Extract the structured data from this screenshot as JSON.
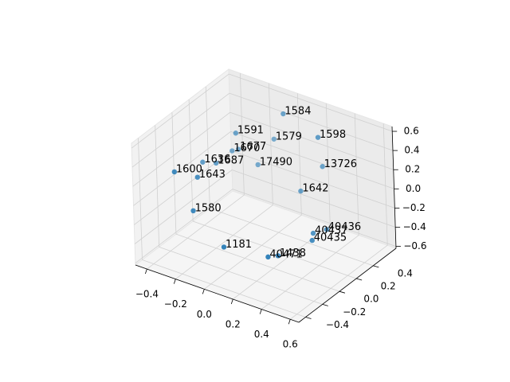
{
  "chart_data": {
    "type": "scatter3d",
    "color": "#1f77b4",
    "labels": [
      "1584",
      "1591",
      "1579",
      "1598",
      "1670",
      "1677",
      "1636",
      "1687",
      "1600",
      "1643",
      "17490",
      "13726",
      "1642",
      "1580",
      "40436",
      "40437",
      "40435",
      "1181",
      "40471",
      "1438"
    ],
    "x": [
      -0.02,
      -0.28,
      -0.14,
      0.22,
      -0.34,
      -0.32,
      -0.41,
      -0.34,
      -0.41,
      -0.34,
      -0.21,
      0.19,
      0.08,
      -0.31,
      0.29,
      0.25,
      0.29,
      -0.09,
      0.14,
      0.18
    ],
    "y": [
      0.53,
      0.4,
      0.61,
      0.53,
      0.45,
      0.49,
      0.22,
      0.26,
      -0.11,
      0.04,
      0.53,
      0.62,
      0.54,
      -0.07,
      0.48,
      0.39,
      0.31,
      -0.09,
      0.04,
      0.09
    ],
    "z": [
      0.52,
      0.27,
      0.14,
      0.4,
      0.02,
      0.02,
      0.02,
      0.02,
      0.14,
      0.02,
      -0.11,
      0.02,
      -0.24,
      -0.24,
      -0.49,
      -0.49,
      -0.49,
      -0.49,
      -0.56,
      -0.56
    ],
    "xlim": [
      -0.48,
      0.66
    ],
    "ylim": [
      -0.48,
      0.67
    ],
    "zlim": [
      -0.62,
      0.65
    ],
    "xticks": [
      {
        "value": -0.4,
        "label": "−0.4"
      },
      {
        "value": -0.2,
        "label": "−0.2"
      },
      {
        "value": 0,
        "label": "0.0"
      },
      0.2,
      0.4,
      0.6
    ],
    "yticks": [
      {
        "value": -0.4,
        "label": "−0.4"
      },
      {
        "value": -0.2,
        "label": "−0.2"
      },
      {
        "value": 0,
        "label": "0.0"
      },
      0.2,
      0.4
    ],
    "zticks": [
      {
        "value": -0.6,
        "label": "−0.6"
      },
      {
        "value": -0.4,
        "label": "−0.4"
      },
      {
        "value": -0.2,
        "label": "−0.2"
      },
      {
        "value": 0,
        "label": "0.0"
      },
      0.2,
      0.4,
      0.6
    ],
    "grid": true
  }
}
